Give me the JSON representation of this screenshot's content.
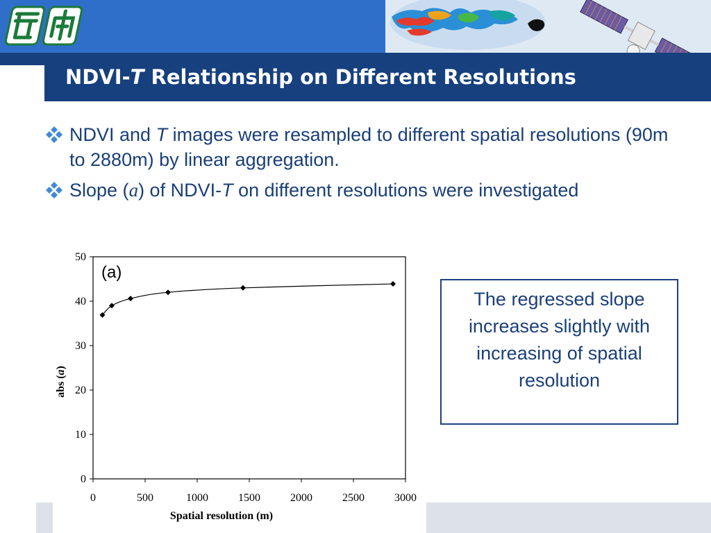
{
  "slide": {
    "title_prefix": "NDVI-",
    "title_var": "T",
    "title_suffix": " Relationship on Different Resolutions"
  },
  "bullets": [
    {
      "parts": [
        "NDVI and ",
        "T",
        " images were resampled to different spatial resolutions (90m to 2880m) by linear aggregation."
      ]
    },
    {
      "parts": [
        "Slope (",
        "a",
        ") of NDVI-",
        "T",
        " on different resolutions were investigated"
      ]
    }
  ],
  "callout": {
    "text": "The regressed slope increases slightly with increasing of spatial resolution"
  },
  "chart_data": {
    "type": "line",
    "panel_label": "(a)",
    "xlabel": "Spatial resolution (m)",
    "ylabel_prefix": "abs (",
    "ylabel_var": "a",
    "ylabel_suffix": ")",
    "xlim": [
      0,
      3000
    ],
    "ylim": [
      0,
      50
    ],
    "xticks": [
      "0",
      "500",
      "1000",
      "1500",
      "2000",
      "2500",
      "3000"
    ],
    "yticks": [
      "0",
      "10",
      "20",
      "30",
      "40",
      "50"
    ],
    "grid": false,
    "series": [
      {
        "x": [
          90,
          180,
          360,
          720,
          1440,
          2880
        ],
        "y": [
          36.9,
          39.0,
          40.6,
          42.0,
          43.0,
          43.9
        ]
      }
    ],
    "curve_color": "#000000"
  },
  "icons": {
    "logo": "school-logo-icon",
    "bullet": "diamond-bullet-icon"
  },
  "colors": {
    "banner": "#2f6fc9",
    "title_bar": "#17407e",
    "text": "#1a3f78",
    "callout_border": "#1b3f82"
  }
}
